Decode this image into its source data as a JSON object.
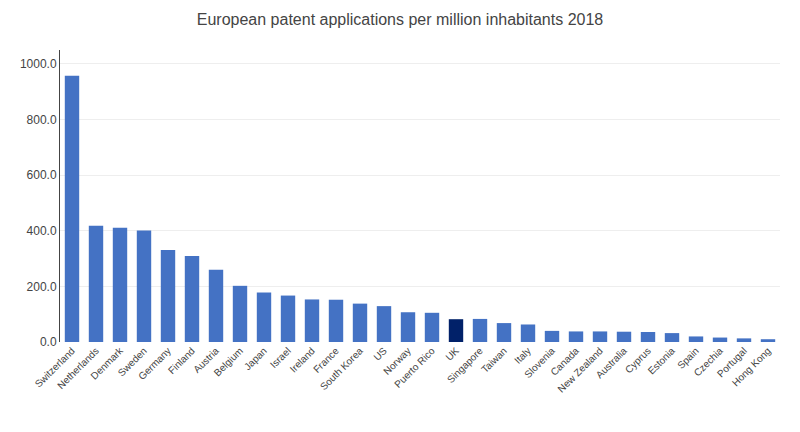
{
  "chart_data": {
    "type": "bar",
    "title": "European patent applications per million inhabitants 2018",
    "categories": [
      "Switzerland",
      "Netherlands",
      "Denmark",
      "Sweden",
      "Germany",
      "Finland",
      "Austria",
      "Belgium",
      "Japan",
      "Israel",
      "Ireland",
      "France",
      "South Korea",
      "US",
      "Norway",
      "Puerto Rico",
      "UK",
      "Singapore",
      "Taiwan",
      "Italy",
      "Slovenia",
      "Canada",
      "New Zealand",
      "Australia",
      "Cyprus",
      "Estonia",
      "Spain",
      "Czechia",
      "Portugal",
      "Hong Kong"
    ],
    "values": [
      957,
      418,
      411,
      401,
      331,
      309,
      260,
      202,
      178,
      167,
      153,
      152,
      138,
      129,
      107,
      105,
      82,
      83,
      68,
      63,
      40,
      38,
      38,
      37,
      36,
      32,
      20,
      16,
      13,
      10
    ],
    "colors": [
      "#4472C4",
      "#4472C4",
      "#4472C4",
      "#4472C4",
      "#4472C4",
      "#4472C4",
      "#4472C4",
      "#4472C4",
      "#4472C4",
      "#4472C4",
      "#4472C4",
      "#4472C4",
      "#4472C4",
      "#4472C4",
      "#4472C4",
      "#4472C4",
      "#012169",
      "#4472C4",
      "#4472C4",
      "#4472C4",
      "#4472C4",
      "#4472C4",
      "#4472C4",
      "#4472C4",
      "#4472C4",
      "#4472C4",
      "#4472C4",
      "#4472C4",
      "#4472C4",
      "#4472C4"
    ],
    "ylim": [
      0,
      1050
    ],
    "yticks": [
      {
        "value": 0,
        "label": "0.0"
      },
      {
        "value": 200,
        "label": "200.0"
      },
      {
        "value": 400,
        "label": "400.0"
      },
      {
        "value": 600,
        "label": "600.0"
      },
      {
        "value": 800,
        "label": "800.0"
      },
      {
        "value": 1000,
        "label": "1000.0"
      }
    ],
    "grid": true
  }
}
